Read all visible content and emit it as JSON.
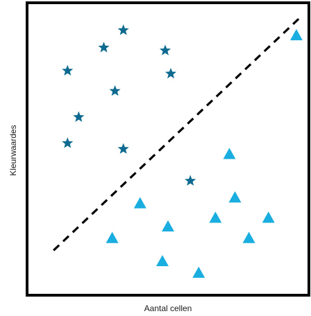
{
  "chart_data": {
    "type": "scatter",
    "title": "",
    "xlabel": "Aantal cellen",
    "ylabel": "Kleurwaardes",
    "xlim": [
      0,
      100
    ],
    "ylim": [
      0,
      100
    ],
    "grid": false,
    "legend": "none",
    "separator": {
      "style": "dashed",
      "color": "#000000",
      "from": [
        9,
        15
      ],
      "to": [
        98,
        96
      ]
    },
    "series": [
      {
        "marker": "star",
        "color": "#0e6a8e",
        "points": [
          [
            34,
            91
          ],
          [
            27,
            85
          ],
          [
            49,
            84
          ],
          [
            14,
            77
          ],
          [
            51,
            76
          ],
          [
            31,
            70
          ],
          [
            18,
            61
          ],
          [
            14,
            52
          ],
          [
            34,
            50
          ],
          [
            58,
            39
          ]
        ]
      },
      {
        "marker": "triangle",
        "color": "#1aaee0",
        "points": [
          [
            96,
            89
          ],
          [
            72,
            48
          ],
          [
            40,
            31
          ],
          [
            74,
            33
          ],
          [
            50,
            23
          ],
          [
            67,
            26
          ],
          [
            86,
            26
          ],
          [
            30,
            19
          ],
          [
            79,
            19
          ],
          [
            48,
            11
          ],
          [
            61,
            7
          ]
        ]
      }
    ]
  }
}
